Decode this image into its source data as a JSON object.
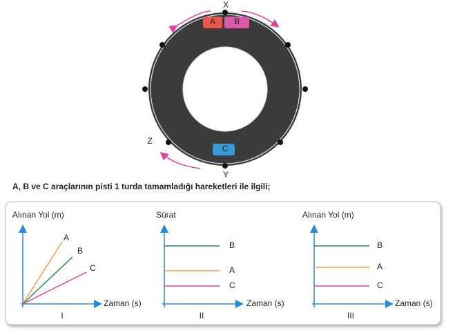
{
  "track": {
    "top_label": "X",
    "bottom_label": "Y",
    "left_label": "Z",
    "cars": [
      "A",
      "B",
      "C"
    ]
  },
  "question": "A, B ve C araçlarının pisti 1 turda tamamladığı hareketleri ile ilgili;",
  "graphs": [
    {
      "y_label": "Alınan Yol (m)",
      "x_label": "Zaman (s)",
      "numeral": "I",
      "lines": [
        "A",
        "B",
        "C"
      ]
    },
    {
      "y_label": "Sürat",
      "x_label": "Zaman (s)",
      "numeral": "II",
      "lines": [
        "A",
        "B",
        "C"
      ]
    },
    {
      "y_label": "Alınan Yol (m)",
      "x_label": "Zaman (s)",
      "numeral": "III",
      "lines": [
        "A",
        "B",
        "C"
      ]
    }
  ]
}
